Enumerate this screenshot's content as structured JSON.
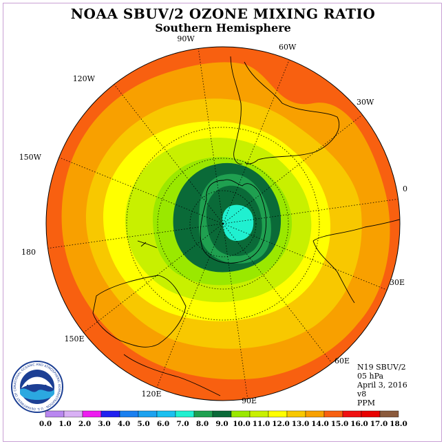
{
  "header": {
    "title": "NOAA SBUV/2 OZONE MIXING RATIO",
    "subtitle": "Southern Hemisphere"
  },
  "longitude_labels": [
    "90W",
    "60W",
    "30W",
    "0",
    "30E",
    "60E",
    "90E",
    "120E",
    "150E",
    "180",
    "150W",
    "120W"
  ],
  "info": {
    "satellite": "N19 SBUV/2",
    "pressure": "05 hPa",
    "date": "April 3, 2016",
    "version": "v8",
    "units": "PPM"
  },
  "logo": {
    "text": "NOAA",
    "ring_text": "NATIONAL OCEANIC AND ATMOSPHERIC ADMINISTRATION · U.S. DEPARTMENT OF COMMERCE"
  },
  "colorbar": {
    "labels": [
      "0.0",
      "1.0",
      "2.0",
      "3.0",
      "4.0",
      "5.0",
      "6.0",
      "7.0",
      "8.0",
      "9.0",
      "10.0",
      "11.0",
      "12.0",
      "13.0",
      "14.0",
      "15.0",
      "16.0",
      "17.0",
      "18.0"
    ],
    "colors": [
      "#b987f0",
      "#d9b0f5",
      "#ee1cf0",
      "#2020f0",
      "#1a7ff0",
      "#1ca2f0",
      "#1ac0f0",
      "#20f0d0",
      "#1fa050",
      "#0a6a38",
      "#9ae800",
      "#c8f000",
      "#ffff00",
      "#f8c800",
      "#f8a000",
      "#f86010",
      "#f01010",
      "#e80000",
      "#8b5a3c"
    ]
  },
  "map_colors": {
    "ocean_outer": "#f86010",
    "band_15": "#f8a000",
    "band_14": "#f8c800",
    "band_13": "#ffff00",
    "band_12": "#c8f000",
    "band_11": "#9ae800",
    "band_10": "#0a6a38",
    "band_9": "#1fa050",
    "band_8": "#20f0d0"
  }
}
